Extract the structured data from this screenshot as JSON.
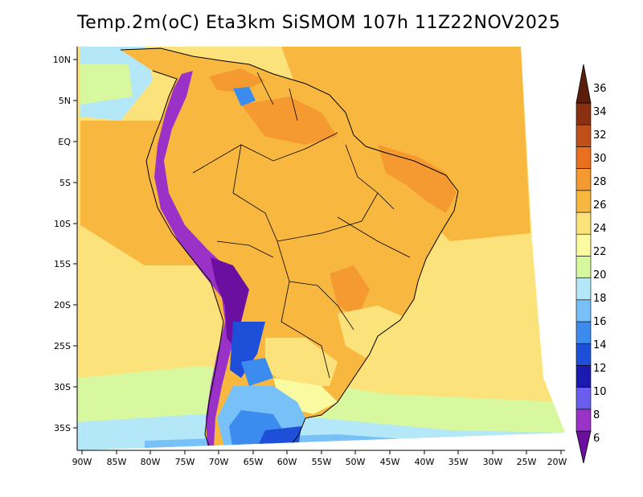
{
  "title": "Temp.2m(oC) Eta3km SiSMOM 107h 11Z22NOV2025",
  "map": {
    "lat_labels": [
      "10N",
      "5N",
      "EQ",
      "5S",
      "10S",
      "15S",
      "20S",
      "25S",
      "30S",
      "35S"
    ],
    "lon_labels": [
      "90W",
      "85W",
      "80W",
      "75W",
      "70W",
      "65W",
      "60W",
      "55W",
      "50W",
      "45W",
      "40W",
      "35W",
      "30W",
      "25W",
      "20W"
    ]
  },
  "colorbar": {
    "labels": [
      "6",
      "8",
      "10",
      "12",
      "14",
      "16",
      "18",
      "20",
      "22",
      "24",
      "26",
      "28",
      "30",
      "32",
      "34",
      "36"
    ],
    "colors": [
      "#6a0fa0",
      "#9a32c8",
      "#6a5ef0",
      "#1a1ab0",
      "#1e4fd8",
      "#3c8cf0",
      "#78c0f8",
      "#b4e8f8",
      "#d8f8a0",
      "#fafaa0",
      "#fce27a",
      "#f8b840",
      "#f49a30",
      "#e8701e",
      "#c0501a",
      "#8a3010",
      "#5a1e0a"
    ]
  },
  "palette": {
    "ocean_tropical": "#f8b840",
    "ocean_subtropical": "#fce27a",
    "ocean_cool": "#d8f8a0",
    "land_hot": "#f49a30",
    "land_warm": "#f8b840",
    "land_mild": "#fce27a",
    "south_cool": "#78c0f8",
    "south_cold": "#1e4fd8",
    "andes": "#6a0fa0",
    "outside": "#ffffff"
  }
}
